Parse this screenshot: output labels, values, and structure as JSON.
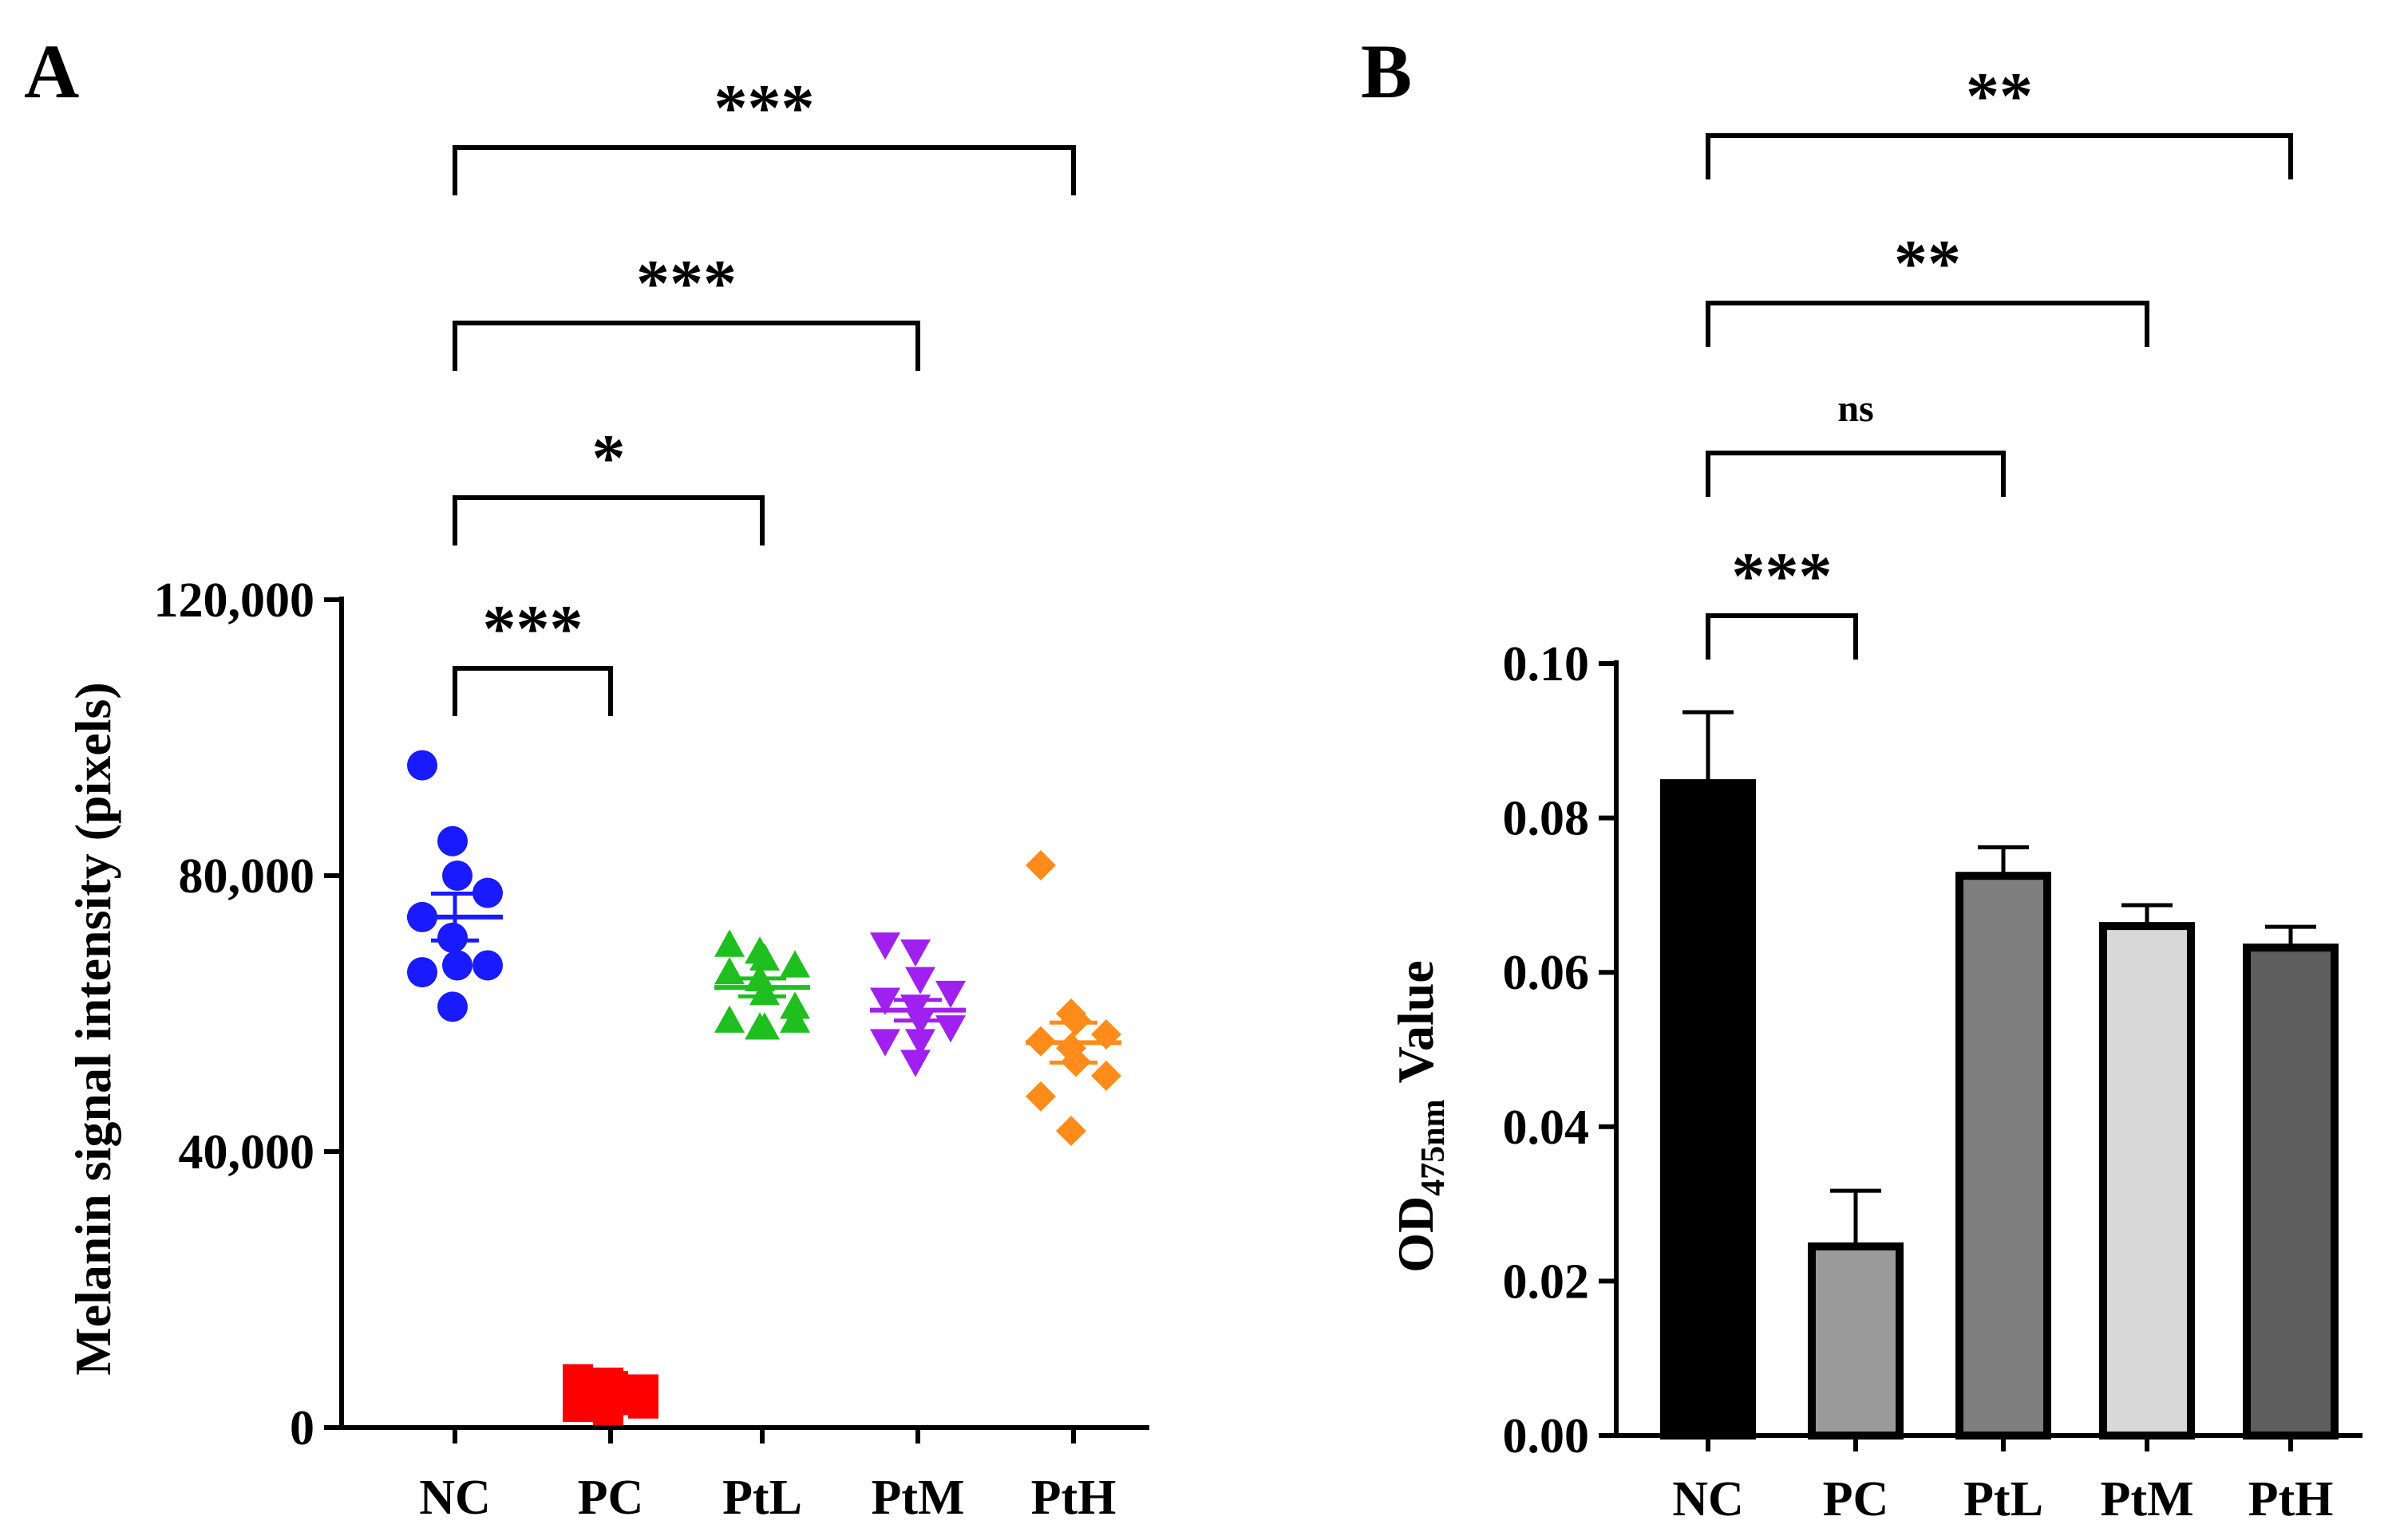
{
  "chart_data": [
    {
      "panel": "A",
      "type": "scatter",
      "title": "",
      "xlabel": "",
      "ylabel": "Melanin signal intensity (pixels)",
      "ylim": [
        0,
        120000
      ],
      "yticks": [
        0,
        40000,
        80000,
        120000
      ],
      "ytick_labels": [
        "0",
        "40,000",
        "80,000",
        "120,000"
      ],
      "categories": [
        "NC",
        "PC",
        "PtL",
        "PtM",
        "PtH"
      ],
      "series": [
        {
          "name": "NC",
          "marker": "circle",
          "color": "#1a1aff",
          "values": [
            96000,
            85000,
            80000,
            77500,
            74000,
            71000,
            67000,
            67000,
            66000,
            61000
          ],
          "mean": 74000,
          "sem": 3400
        },
        {
          "name": "PC",
          "marker": "square",
          "color": "#ff0000",
          "values": [
            7000,
            6500,
            6000,
            5500,
            5000,
            4500,
            4000,
            3500,
            3000,
            2500
          ],
          "mean": 4800,
          "sem": 500
        },
        {
          "name": "PtL",
          "marker": "triangle-up",
          "color": "#1fbf1f",
          "values": [
            70000,
            69000,
            68000,
            67000,
            66000,
            65000,
            63000,
            61000,
            59000,
            58000,
            58000,
            59000
          ],
          "mean": 63800,
          "sem": 1300
        },
        {
          "name": "PtM",
          "marker": "triangle-down",
          "color": "#a020f0",
          "values": [
            70000,
            69000,
            65000,
            63000,
            62000,
            61000,
            59000,
            58000,
            56000,
            53000,
            56000
          ],
          "mean": 60500,
          "sem": 1500
        },
        {
          "name": "PtH",
          "marker": "diamond",
          "color": "#ff8c1a",
          "values": [
            81500,
            60000,
            59000,
            57000,
            56000,
            55000,
            53000,
            51000,
            48000,
            43000
          ],
          "mean": 55800,
          "sem": 2900
        }
      ],
      "annotations": [
        {
          "from": "NC",
          "to": "PC",
          "label": "***"
        },
        {
          "from": "NC",
          "to": "PtL",
          "label": "*"
        },
        {
          "from": "NC",
          "to": "PtM",
          "label": "***"
        },
        {
          "from": "NC",
          "to": "PtH",
          "label": "***"
        }
      ]
    },
    {
      "panel": "B",
      "type": "bar",
      "title": "",
      "xlabel": "",
      "ylabel_main": "OD",
      "ylabel_sub": "475nm",
      "ylabel_rest": "Value",
      "ylim": [
        0,
        0.1
      ],
      "yticks": [
        0,
        0.02,
        0.04,
        0.06,
        0.08,
        0.1
      ],
      "ytick_labels": [
        "0.00",
        "0.02",
        "0.04",
        "0.06",
        "0.08",
        "0.10"
      ],
      "categories": [
        "NC",
        "PC",
        "PtL",
        "PtM",
        "PtH"
      ],
      "values": [
        0.0845,
        0.0245,
        0.0725,
        0.066,
        0.0632
      ],
      "errors": [
        0.0092,
        0.0072,
        0.0037,
        0.0027,
        0.0027
      ],
      "colors": [
        "#000000",
        "#9a9a9a",
        "#7f7f7f",
        "#d8d8d8",
        "#5e5e5e"
      ],
      "annotations": [
        {
          "from": "NC",
          "to": "PC",
          "label": "***"
        },
        {
          "from": "NC",
          "to": "PtL",
          "label": "ns"
        },
        {
          "from": "NC",
          "to": "PtM",
          "label": "**"
        },
        {
          "from": "NC",
          "to": "PtH",
          "label": "**"
        }
      ]
    }
  ]
}
